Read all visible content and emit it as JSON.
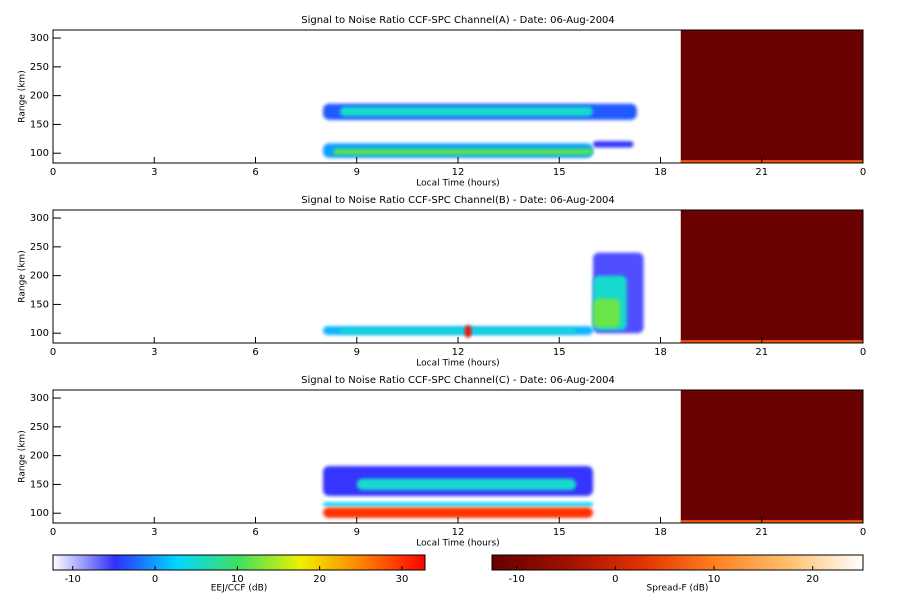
{
  "chart_data": [
    {
      "type": "heatmap",
      "title": "Signal to Noise Ratio CCF-SPC Channel(A) - Date: 06-Aug-2004",
      "xlabel": "Local Time (hours)",
      "ylabel": "Range (km)",
      "xlim": [
        0,
        24
      ],
      "xticks": [
        0,
        3,
        6,
        9,
        12,
        15,
        18,
        21,
        {
          "value": 24,
          "label": "0"
        }
      ],
      "ylim": [
        83,
        314
      ],
      "yticks": [
        100,
        150,
        200,
        250,
        300
      ],
      "eej": [
        {
          "t": [
            8,
            17.3
          ],
          "range": [
            158,
            186
          ],
          "snr": -3
        },
        {
          "t": [
            8.5,
            16
          ],
          "range": [
            164,
            181
          ],
          "snr": 5
        },
        {
          "t": [
            16,
            17.2
          ],
          "range": [
            110,
            121
          ],
          "snr": -5
        },
        {
          "t": [
            8,
            16
          ],
          "range": [
            92,
            117
          ],
          "snr": 0
        },
        {
          "t": [
            8.3,
            16
          ],
          "range": [
            97,
            108
          ],
          "snr": 11
        }
      ],
      "spread_f": [
        {
          "t": [
            18.6,
            24
          ],
          "range": [
            83,
            314
          ],
          "snr": -12
        },
        {
          "t": [
            18.6,
            24
          ],
          "range": [
            84,
            88
          ],
          "snr": 6
        }
      ]
    },
    {
      "type": "heatmap",
      "title": "Signal to Noise Ratio CCF-SPC Channel(B) - Date: 06-Aug-2004",
      "xlabel": "Local Time (hours)",
      "ylabel": "Range (km)",
      "xlim": [
        0,
        24
      ],
      "xticks": [
        0,
        3,
        6,
        9,
        12,
        15,
        18,
        21,
        {
          "value": 24,
          "label": "0"
        }
      ],
      "ylim": [
        83,
        314
      ],
      "yticks": [
        100,
        150,
        200,
        250,
        300
      ],
      "eej": [
        {
          "t": [
            8,
            16
          ],
          "range": [
            97,
            112
          ],
          "snr": 1
        },
        {
          "t": [
            8.5,
            15.5
          ],
          "range": [
            100,
            108
          ],
          "snr": 5
        },
        {
          "t": [
            16,
            17.5
          ],
          "range": [
            100,
            240
          ],
          "snr": -6
        },
        {
          "t": [
            16,
            17
          ],
          "range": [
            105,
            200
          ],
          "snr": 5
        },
        {
          "t": [
            16,
            16.8
          ],
          "range": [
            110,
            160
          ],
          "snr": 12
        },
        {
          "t": [
            12.2,
            12.4
          ],
          "range": [
            92,
            114
          ],
          "snr": 32
        }
      ],
      "spread_f": [
        {
          "t": [
            18.6,
            24
          ],
          "range": [
            83,
            314
          ],
          "snr": -12
        },
        {
          "t": [
            18.6,
            24
          ],
          "range": [
            84,
            88
          ],
          "snr": 6
        }
      ]
    },
    {
      "type": "heatmap",
      "title": "Signal to Noise Ratio CCF-SPC Channel(C) - Date: 06-Aug-2004",
      "xlabel": "Local Time (hours)",
      "ylabel": "Range (km)",
      "xlim": [
        0,
        24
      ],
      "xticks": [
        0,
        3,
        6,
        9,
        12,
        15,
        18,
        21,
        {
          "value": 24,
          "label": "0"
        }
      ],
      "ylim": [
        83,
        314
      ],
      "yticks": [
        100,
        150,
        200,
        250,
        300
      ],
      "eej": [
        {
          "t": [
            8,
            16
          ],
          "range": [
            130,
            182
          ],
          "snr": -5
        },
        {
          "t": [
            9,
            15.5
          ],
          "range": [
            140,
            160
          ],
          "snr": 5
        },
        {
          "t": [
            8,
            16
          ],
          "range": [
            112,
            119
          ],
          "snr": 3
        },
        {
          "t": [
            8,
            16
          ],
          "range": [
            92,
            110
          ],
          "snr": 30
        }
      ],
      "spread_f": [
        {
          "t": [
            18.6,
            24
          ],
          "range": [
            83,
            314
          ],
          "snr": -12
        },
        {
          "t": [
            18.6,
            24
          ],
          "range": [
            84,
            88
          ],
          "snr": 6
        }
      ]
    },
    {
      "type": "colorbar",
      "xlabel": "EEJ/CCF (dB)",
      "xlim": [
        -12.4,
        32.8
      ],
      "xticks": [
        -10,
        0,
        10,
        20,
        30
      ],
      "colors": [
        "#ffffff",
        "#3030ff",
        "#00d8ff",
        "#40e060",
        "#f0f000",
        "#ff8000",
        "#ff0000"
      ]
    },
    {
      "type": "colorbar",
      "xlabel": "Spread-F (dB)",
      "xlim": [
        -12.5,
        25.1
      ],
      "xticks": [
        -10,
        0,
        10,
        20
      ],
      "colors": [
        "#640000",
        "#a01000",
        "#e03000",
        "#ff8020",
        "#ffc070",
        "#ffffff"
      ]
    }
  ]
}
